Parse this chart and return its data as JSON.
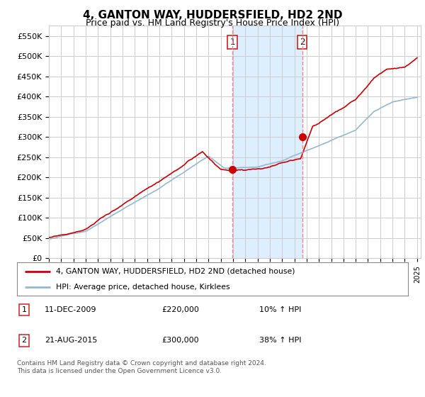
{
  "title": "4, GANTON WAY, HUDDERSFIELD, HD2 2ND",
  "subtitle": "Price paid vs. HM Land Registry's House Price Index (HPI)",
  "title_fontsize": 11,
  "subtitle_fontsize": 9,
  "ylabel_ticks": [
    "£0",
    "£50K",
    "£100K",
    "£150K",
    "£200K",
    "£250K",
    "£300K",
    "£350K",
    "£400K",
    "£450K",
    "£500K",
    "£550K"
  ],
  "ytick_values": [
    0,
    50000,
    100000,
    150000,
    200000,
    250000,
    300000,
    350000,
    400000,
    450000,
    500000,
    550000
  ],
  "ylim": [
    0,
    575000
  ],
  "x_start_year": 1995,
  "x_end_year": 2025,
  "line1_color": "#cc0000",
  "line2_color": "#92b8d4",
  "purchase1_date": 2009.95,
  "purchase1_value": 220000,
  "purchase2_date": 2015.64,
  "purchase2_value": 300000,
  "vline_color": "#ee8888",
  "shade_color": "#ddeeff",
  "legend_line1": "4, GANTON WAY, HUDDERSFIELD, HD2 2ND (detached house)",
  "legend_line2": "HPI: Average price, detached house, Kirklees",
  "note1_date": "11-DEC-2009",
  "note1_price": "£220,000",
  "note1_hpi": "10% ↑ HPI",
  "note2_date": "21-AUG-2015",
  "note2_price": "£300,000",
  "note2_hpi": "38% ↑ HPI",
  "footer": "Contains HM Land Registry data © Crown copyright and database right 2024.\nThis data is licensed under the Open Government Licence v3.0.",
  "bg_color": "#ffffff",
  "grid_color": "#cccccc"
}
